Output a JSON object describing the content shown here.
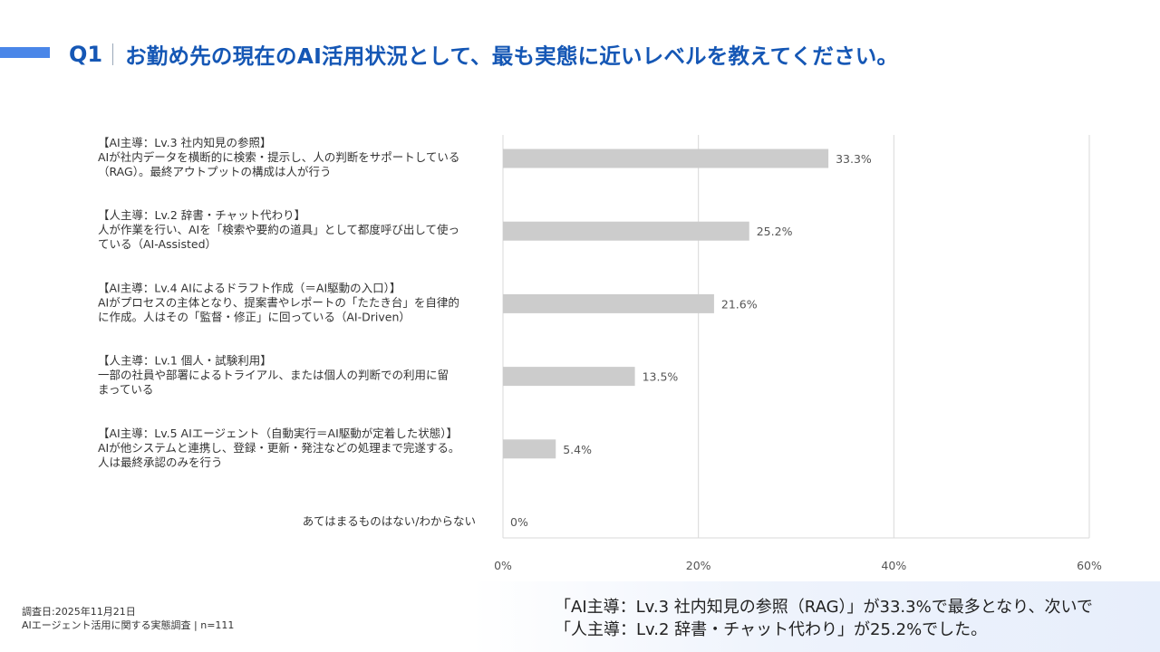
{
  "header": {
    "question_no": "Q1",
    "title": "お勤め先の現在のAI活用状況として、最も実態に近いレベルを教えてください。"
  },
  "colors": {
    "title": "#1557b5",
    "accent": "#4a86e8",
    "bar": "#cccccc",
    "grid": "#d9d9d9"
  },
  "chart_data": {
    "type": "bar",
    "orientation": "horizontal",
    "title": "お勤め先の現在のAI活用状況として、最も実態に近いレベルを教えてください。",
    "xlabel": "",
    "ylabel": "",
    "xlim": [
      0,
      60
    ],
    "x_ticks": [
      0,
      20,
      40,
      60
    ],
    "x_tick_labels": [
      "0%",
      "20%",
      "40%",
      "60%"
    ],
    "grid": true,
    "unit": "%",
    "categories": [
      [
        "【AI主導：Lv.3 社内知見の参照】",
        "AIが社内データを横断的に検索・提示し、人の判断をサポートしている",
        "（RAG）。最終アウトプットの構成は人が行う"
      ],
      [
        "【人主導：Lv.2 辞書・チャット代わり】",
        "人が作業を行い、AIを「検索や要約の道具」として都度呼び出して使っ",
        "ている（AI-Assisted）"
      ],
      [
        "【AI主導：Lv.4 AIによるドラフト作成（＝AI駆動の入口）】",
        "AIがプロセスの主体となり、提案書やレポートの「たたき台」を自律的",
        "に作成。人はその「監督・修正」に回っている（AI-Driven）"
      ],
      [
        "【人主導：Lv.1 個人・試験利用】",
        "一部の社員や部署によるトライアル、または個人の判断での利用に留",
        "まっている"
      ],
      [
        "【AI主導：Lv.5 AIエージェント（自動実行＝AI駆動が定着した状態）】",
        "AIが他システムと連携し、登録・更新・発注などの処理まで完遂する。",
        "人は最終承認のみを行う"
      ],
      [
        "あてはまるものはない/わからない"
      ]
    ],
    "values": [
      33.3,
      25.2,
      21.6,
      13.5,
      5.4,
      0
    ],
    "value_labels": [
      "33.3%",
      "25.2%",
      "21.6%",
      "13.5%",
      "5.4%",
      "0%"
    ]
  },
  "footer": {
    "survey_date": "調査日:2025年11月21日",
    "survey_name": "AIエージェント活用に関する実態調査 | n=111",
    "summary_line1": "「AI主導：Lv.3 社内知見の参照（RAG）」が33.3%で最多となり、次いで",
    "summary_line2": "「人主導：Lv.2 辞書・チャット代わり」が25.2%でした。"
  }
}
